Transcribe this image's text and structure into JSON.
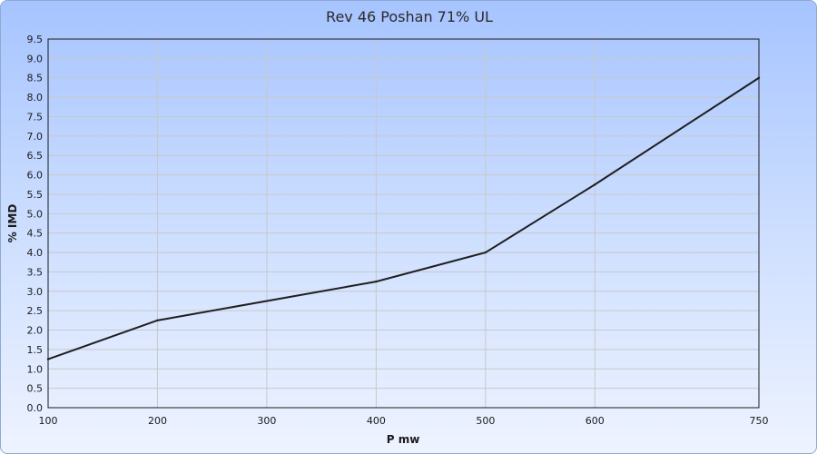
{
  "chart_data": {
    "type": "line",
    "title": "Rev 46 Poshan 71% UL",
    "xlabel": "P mw",
    "ylabel": "% IMD",
    "xlim": [
      100,
      750
    ],
    "ylim": [
      0.0,
      9.5
    ],
    "x_ticks": [
      "100",
      "200",
      "300",
      "400",
      "500",
      "600",
      "750"
    ],
    "y_ticks": [
      "0.0",
      "0.5",
      "1.0",
      "1.5",
      "2.0",
      "2.5",
      "3.0",
      "3.5",
      "4.0",
      "4.5",
      "5.0",
      "5.5",
      "6.0",
      "6.5",
      "7.0",
      "7.5",
      "8.0",
      "8.5",
      "9.0",
      "9.5"
    ],
    "grid": true,
    "series": [
      {
        "x": [
          100,
          200,
          400,
          500,
          600,
          750
        ],
        "y": [
          1.25,
          2.25,
          3.25,
          4.0,
          5.75,
          8.5
        ]
      }
    ],
    "colors": {
      "line": "#1f1f1f",
      "grid": "#c8c8c8",
      "background_top": "#a6c4ff",
      "background_bottom": "#eef3ff"
    }
  }
}
